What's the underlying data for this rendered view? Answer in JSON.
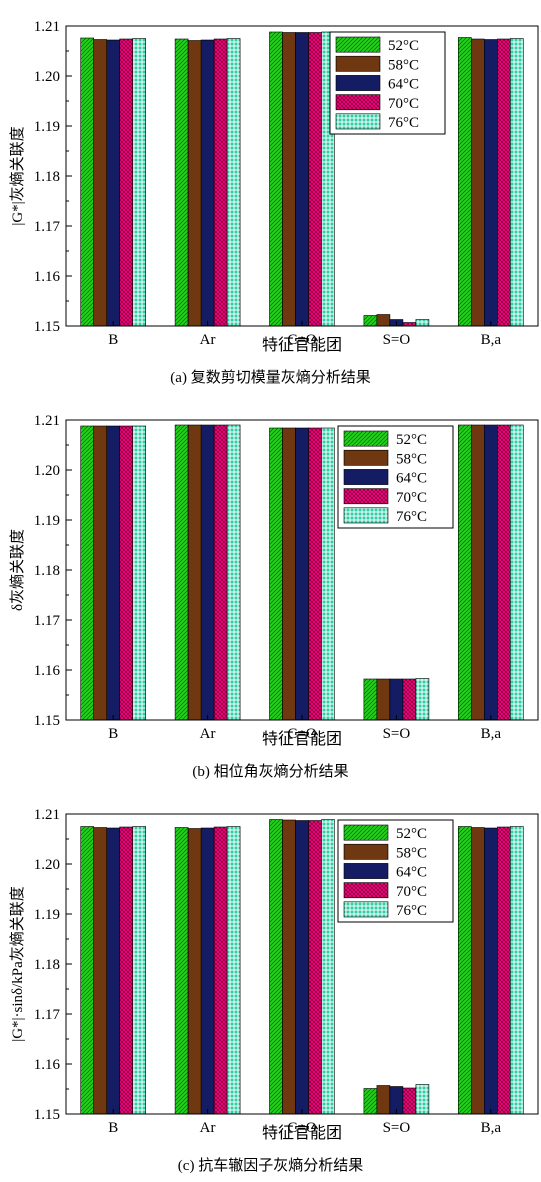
{
  "chart_data": [
    {
      "type": "bar",
      "caption": "(a) 复数剪切模量灰熵分析结果",
      "xlabel": "特征官能团",
      "ylabel": "|G*|灰熵关联度",
      "ylim": [
        1.15,
        1.21
      ],
      "yticks": [
        "1.15",
        "1.16",
        "1.17",
        "1.18",
        "1.19",
        "1.20",
        "1.21"
      ],
      "categories": [
        "B",
        "Ar",
        "C=O",
        "S=O",
        "B,a"
      ],
      "legend_position": "top-right",
      "series": [
        {
          "name": "52°C",
          "values": [
            1.2076,
            1.2074,
            1.2088,
            1.1521,
            1.2077
          ]
        },
        {
          "name": "58°C",
          "values": [
            1.2073,
            1.2071,
            1.2087,
            1.1523,
            1.2074
          ]
        },
        {
          "name": "64°C",
          "values": [
            1.2072,
            1.2072,
            1.2087,
            1.1513,
            1.2073
          ]
        },
        {
          "name": "70°C",
          "values": [
            1.2074,
            1.2074,
            1.2087,
            1.1507,
            1.2074
          ]
        },
        {
          "name": "76°C",
          "values": [
            1.2075,
            1.2075,
            1.2088,
            1.1513,
            1.2075
          ]
        }
      ]
    },
    {
      "type": "bar",
      "caption": "(b) 相位角灰熵分析结果",
      "xlabel": "特征官能团",
      "ylabel": "δ灰熵关联度",
      "ylim": [
        1.15,
        1.21
      ],
      "yticks": [
        "1.15",
        "1.16",
        "1.17",
        "1.18",
        "1.19",
        "1.20",
        "1.21"
      ],
      "categories": [
        "B",
        "Ar",
        "C=O",
        "S=O",
        "B,a"
      ],
      "legend_position": "top-right",
      "series": [
        {
          "name": "52°C",
          "values": [
            1.2088,
            1.209,
            1.2084,
            1.1582,
            1.209
          ]
        },
        {
          "name": "58°C",
          "values": [
            1.2088,
            1.209,
            1.2084,
            1.1582,
            1.209
          ]
        },
        {
          "name": "64°C",
          "values": [
            1.2088,
            1.209,
            1.2084,
            1.1582,
            1.209
          ]
        },
        {
          "name": "70°C",
          "values": [
            1.2088,
            1.209,
            1.2084,
            1.1582,
            1.209
          ]
        },
        {
          "name": "76°C",
          "values": [
            1.2088,
            1.209,
            1.2084,
            1.1583,
            1.209
          ]
        }
      ]
    },
    {
      "type": "bar",
      "caption": "(c) 抗车辙因子灰熵分析结果",
      "xlabel": "特征官能团",
      "ylabel": "|G*|·sinδ/kPa灰熵关联度",
      "ylim": [
        1.15,
        1.21
      ],
      "yticks": [
        "1.15",
        "1.16",
        "1.17",
        "1.18",
        "1.19",
        "1.20",
        "1.21"
      ],
      "categories": [
        "B",
        "Ar",
        "C=O",
        "S=O",
        "B,a"
      ],
      "legend_position": "top-right",
      "series": [
        {
          "name": "52°C",
          "values": [
            1.2075,
            1.2073,
            1.2089,
            1.1551,
            1.2075
          ]
        },
        {
          "name": "58°C",
          "values": [
            1.2073,
            1.2071,
            1.2088,
            1.1557,
            1.2073
          ]
        },
        {
          "name": "64°C",
          "values": [
            1.2072,
            1.2072,
            1.2087,
            1.1555,
            1.2072
          ]
        },
        {
          "name": "70°C",
          "values": [
            1.2074,
            1.2074,
            1.2087,
            1.1552,
            1.2074
          ]
        },
        {
          "name": "76°C",
          "values": [
            1.2075,
            1.2075,
            1.2089,
            1.1559,
            1.2075
          ]
        }
      ]
    }
  ],
  "series_style": [
    {
      "color": "#22d11c",
      "pattern": "diag-forward"
    },
    {
      "color": "#8b4513",
      "pattern": "vertical"
    },
    {
      "color": "#1a237e",
      "pattern": "horizontal"
    },
    {
      "color": "#ff007f",
      "pattern": "crosshatch"
    },
    {
      "color": "#2ecfa6",
      "pattern": "grid"
    }
  ]
}
